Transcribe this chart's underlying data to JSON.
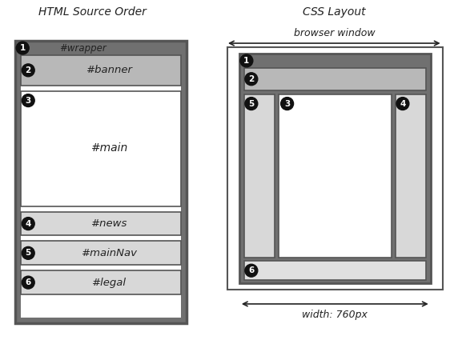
{
  "title_left": "HTML Source Order",
  "title_right": "CSS Layout",
  "bg_color": "#ffffff",
  "wrapper_dark": "#707070",
  "banner_color": "#b8b8b8",
  "main_color": "#ffffff",
  "side_color": "#d8d8d8",
  "legal_color": "#e0e0e0",
  "dark_edge": "#555555",
  "circle_color": "#111111",
  "text_color": "#222222",
  "browser_window_label": "browser window",
  "width_label": "width: 760px"
}
